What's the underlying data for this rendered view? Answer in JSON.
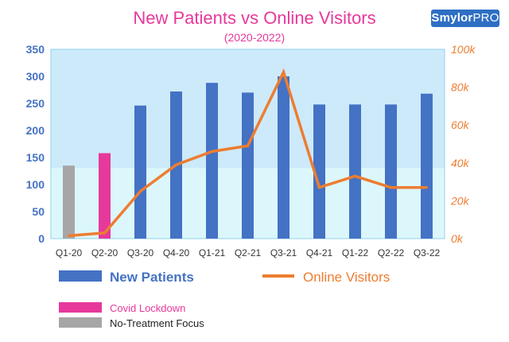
{
  "logo": {
    "brand": "Smylor",
    "suffix": "PRO"
  },
  "chart_data": {
    "type": "bar",
    "title": "New Patients vs Online Visitors",
    "subtitle": "(2020-2022)",
    "categories": [
      "Q1-20",
      "Q2-20",
      "Q3-20",
      "Q4-20",
      "Q1-21",
      "Q2-21",
      "Q3-21",
      "Q4-21",
      "Q1-22",
      "Q2-22",
      "Q3-22"
    ],
    "series": [
      {
        "name": "New Patients",
        "type": "bar",
        "axis": "left",
        "values": [
          135,
          158,
          246,
          272,
          288,
          270,
          300,
          248,
          248,
          248,
          268
        ],
        "colors": [
          "#a6a6a6",
          "#e6399b",
          "#4472c4",
          "#4472c4",
          "#4472c4",
          "#4472c4",
          "#4472c4",
          "#4472c4",
          "#4472c4",
          "#4472c4",
          "#4472c4"
        ]
      },
      {
        "name": "Online Visitors",
        "type": "line",
        "axis": "right",
        "values": [
          1500,
          3000,
          25000,
          39000,
          46000,
          49000,
          88000,
          27000,
          33000,
          27000,
          27000
        ]
      }
    ],
    "y_left": {
      "ylim": [
        0,
        350
      ],
      "ticks": [
        "0",
        "50",
        "100",
        "150",
        "200",
        "250",
        "300",
        "350"
      ],
      "color": "#4472c4"
    },
    "y_right": {
      "ylim": [
        0,
        100000
      ],
      "ticks": [
        "0k",
        "20k",
        "40k",
        "60k",
        "80k",
        "100k"
      ],
      "color": "#ed7d31"
    },
    "legend": [
      {
        "label": "New Patients",
        "kind": "bar",
        "color": "#4472c4"
      },
      {
        "label": "Online Visitors",
        "kind": "line",
        "color": "#ed7d31"
      },
      {
        "label": "Covid Lockdown",
        "kind": "bar",
        "color": "#e6399b"
      },
      {
        "label": "No-Treatment Focus",
        "kind": "bar",
        "color": "#a6a6a6"
      }
    ],
    "legend_position": "bottom",
    "colors": {
      "title": "#e6399b",
      "bars": "#4472c4",
      "line": "#ed7d31",
      "plot_bg_upper": "#cdeafb",
      "plot_bg_lower": "#dcf7fb"
    }
  }
}
